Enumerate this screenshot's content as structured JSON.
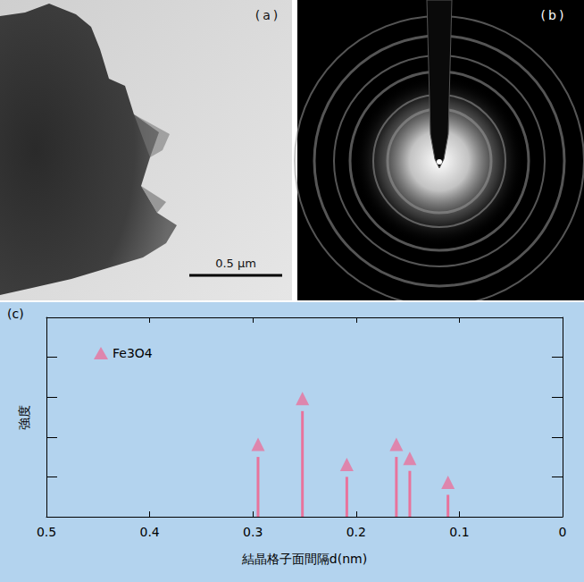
{
  "panels": [
    {
      "label": "(a)",
      "scale_bar": "0.5 μm"
    },
    {
      "label": "(b)"
    },
    {
      "label": "(c)"
    }
  ],
  "chart_data": {
    "type": "bar",
    "xlabel": "結晶格子面間隔d(nm)",
    "ylabel": "強度",
    "x": [
      0.295,
      0.252,
      0.209,
      0.161,
      0.148,
      0.111
    ],
    "series": [
      {
        "name": "Fe3O4",
        "color": "#e8739c",
        "marker": "triangle",
        "values": [
          1.5,
          2.65,
          1.0,
          1.5,
          1.15,
          0.55
        ]
      }
    ],
    "xlim": [
      0.5,
      0
    ],
    "xticks": [
      0.5,
      0.4,
      0.3,
      0.2,
      0.1,
      0
    ],
    "ylim": [
      0,
      5
    ],
    "yticks": [
      0,
      1,
      2,
      3,
      4,
      5
    ],
    "tick_labels": "x",
    "legend": "upper left",
    "grid": false
  }
}
